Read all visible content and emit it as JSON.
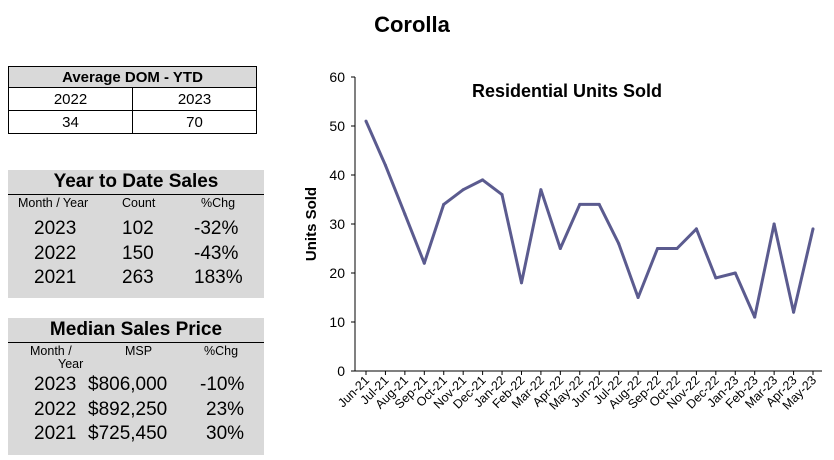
{
  "title": "Corolla",
  "dom": {
    "title": "Average DOM - YTD",
    "years": [
      "2022",
      "2023"
    ],
    "values": [
      "34",
      "70"
    ]
  },
  "ytd": {
    "title": "Year to Date Sales",
    "columns": [
      "Month / Year",
      "Count",
      "%Chg"
    ],
    "rows": [
      {
        "year": "2023",
        "value": "102",
        "chg": "-32%"
      },
      {
        "year": "2022",
        "value": "150",
        "chg": "-43%"
      },
      {
        "year": "2021",
        "value": "263",
        "chg": "183%"
      }
    ]
  },
  "msp": {
    "title": "Median Sales Price",
    "columns": [
      "Month /",
      "MSP",
      "%Chg"
    ],
    "column_sub": "Year",
    "rows": [
      {
        "year": "2023",
        "value": "$806,000",
        "chg": "-10%"
      },
      {
        "year": "2022",
        "value": "$892,250",
        "chg": "23%"
      },
      {
        "year": "2021",
        "value": "$725,450",
        "chg": "30%"
      }
    ]
  },
  "chart_data": {
    "type": "line",
    "title": "Residential Units Sold",
    "xlabel": "",
    "ylabel": "Units Sold",
    "ylim": [
      0,
      60
    ],
    "yticks": [
      0,
      10,
      20,
      30,
      40,
      50,
      60
    ],
    "grid": false,
    "categories": [
      "Jun-21",
      "Jul-21",
      "Aug-21",
      "Sep-21",
      "Oct-21",
      "Nov-21",
      "Dec-21",
      "Jan-22",
      "Feb-22",
      "Mar-22",
      "Apr-22",
      "May-22",
      "Jun-22",
      "Jul-22",
      "Aug-22",
      "Sep-22",
      "Oct-22",
      "Nov-22",
      "Dec-22",
      "Jan-23",
      "Feb-23",
      "Mar-23",
      "Apr-23",
      "May-23"
    ],
    "values": [
      51,
      42,
      32,
      22,
      34,
      37,
      39,
      36,
      18,
      37,
      25,
      34,
      34,
      26,
      15,
      25,
      25,
      29,
      19,
      20,
      11,
      30,
      12,
      29
    ],
    "color": "#5b5b8f"
  }
}
